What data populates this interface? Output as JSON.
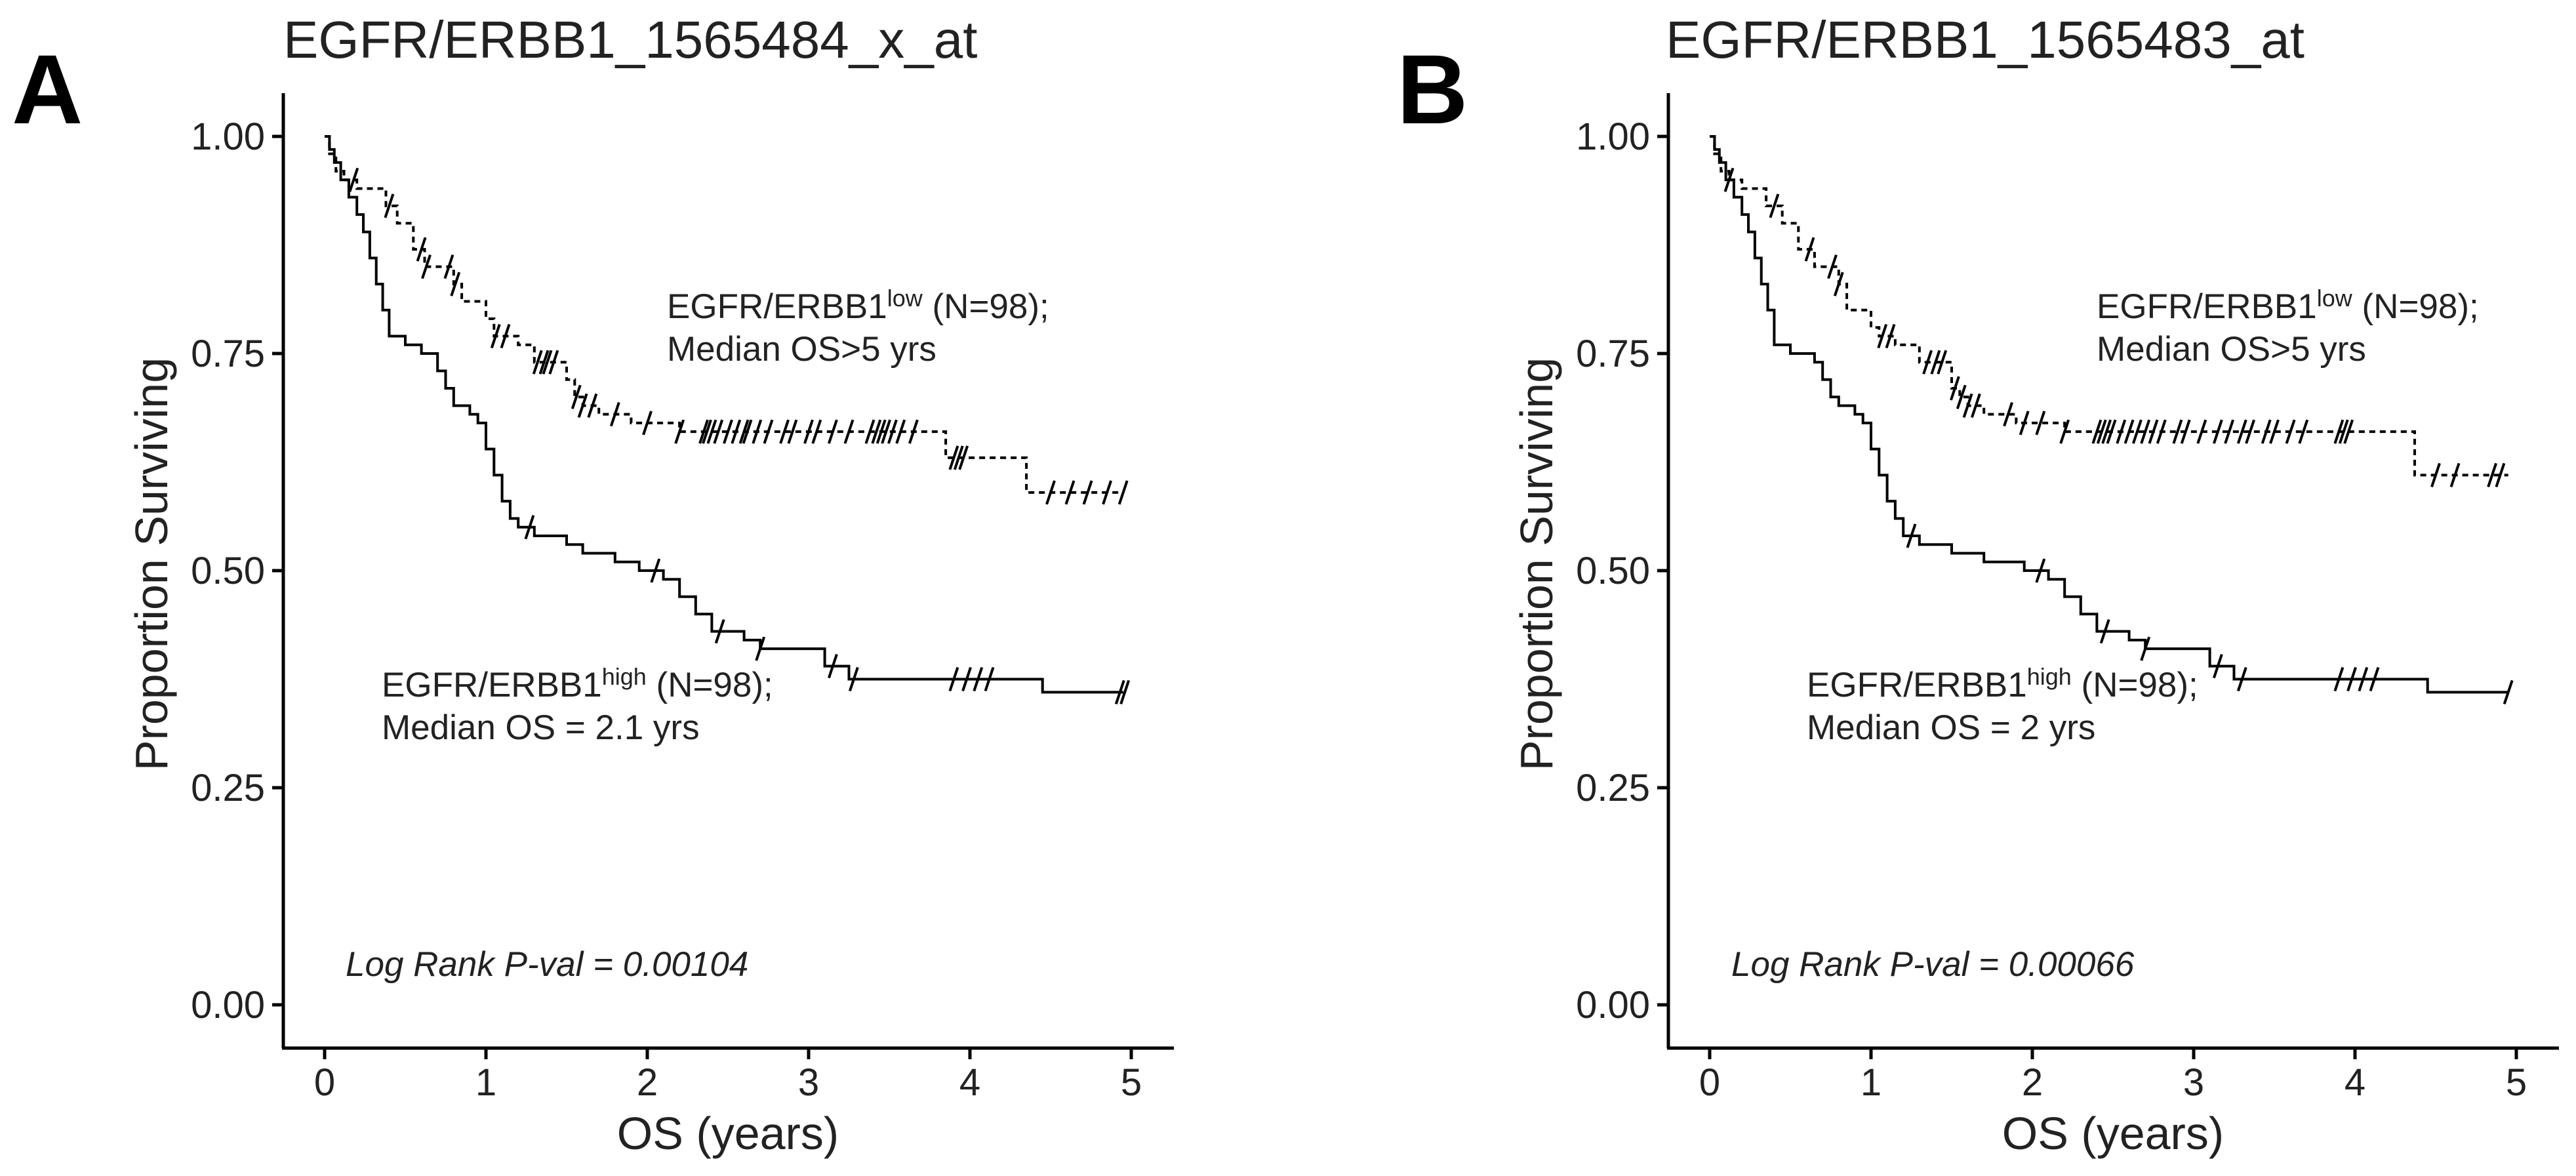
{
  "chart_data": [
    {
      "type": "line",
      "panel_label": "A",
      "title": "EGFR/ERBB1_1565484_x_at",
      "xlabel": "OS (years)",
      "ylabel": "Proportion Surviving",
      "xlim": [
        0,
        5
      ],
      "ylim": [
        0,
        1
      ],
      "x_ticks": [
        "0",
        "1",
        "2",
        "3",
        "4",
        "5"
      ],
      "y_ticks": [
        "0.00",
        "0.25",
        "0.50",
        "0.75",
        "1.00"
      ],
      "annotations": {
        "low_name": "EGFR/ERBB1",
        "low_sup": "low",
        "low_n": " (N=98);",
        "low_median": "Median OS>5 yrs",
        "high_name": "EGFR/ERBB1",
        "high_sup": "high",
        "high_n": " (N=98);",
        "high_median": "Median OS = 2.1 yrs",
        "pvalue": "Log Rank P-val = 0.00104"
      },
      "series": [
        {
          "name": "EGFR/ERBB1 high",
          "style": "solid",
          "steps": [
            [
              0,
              1.0
            ],
            [
              0.03,
              0.985
            ],
            [
              0.06,
              0.97
            ],
            [
              0.1,
              0.95
            ],
            [
              0.15,
              0.93
            ],
            [
              0.2,
              0.91
            ],
            [
              0.24,
              0.89
            ],
            [
              0.28,
              0.86
            ],
            [
              0.32,
              0.83
            ],
            [
              0.36,
              0.8
            ],
            [
              0.4,
              0.77
            ],
            [
              0.5,
              0.76
            ],
            [
              0.6,
              0.75
            ],
            [
              0.7,
              0.73
            ],
            [
              0.75,
              0.71
            ],
            [
              0.8,
              0.69
            ],
            [
              0.9,
              0.68
            ],
            [
              0.95,
              0.67
            ],
            [
              1.0,
              0.64
            ],
            [
              1.05,
              0.61
            ],
            [
              1.1,
              0.58
            ],
            [
              1.15,
              0.56
            ],
            [
              1.2,
              0.55
            ],
            [
              1.3,
              0.54
            ],
            [
              1.5,
              0.53
            ],
            [
              1.6,
              0.52
            ],
            [
              1.8,
              0.51
            ],
            [
              1.95,
              0.5
            ],
            [
              2.1,
              0.49
            ],
            [
              2.2,
              0.47
            ],
            [
              2.3,
              0.45
            ],
            [
              2.4,
              0.43
            ],
            [
              2.6,
              0.42
            ],
            [
              2.7,
              0.41
            ],
            [
              3.1,
              0.39
            ],
            [
              3.25,
              0.375
            ],
            [
              4.45,
              0.36
            ]
          ],
          "end_x": 4.95,
          "censor_times": [
            1.27,
            2.05,
            2.45,
            2.7,
            3.15,
            3.28,
            3.9,
            3.98,
            4.05,
            4.12,
            4.93,
            4.96
          ]
        },
        {
          "name": "EGFR/ERBB1 low",
          "style": "dashed",
          "steps": [
            [
              0,
              1.0
            ],
            [
              0.03,
              0.98
            ],
            [
              0.07,
              0.96
            ],
            [
              0.12,
              0.95
            ],
            [
              0.2,
              0.94
            ],
            [
              0.38,
              0.92
            ],
            [
              0.45,
              0.9
            ],
            [
              0.55,
              0.87
            ],
            [
              0.62,
              0.85
            ],
            [
              0.8,
              0.83
            ],
            [
              0.85,
              0.81
            ],
            [
              1.0,
              0.79
            ],
            [
              1.05,
              0.77
            ],
            [
              1.2,
              0.76
            ],
            [
              1.3,
              0.74
            ],
            [
              1.5,
              0.72
            ],
            [
              1.55,
              0.7
            ],
            [
              1.6,
              0.69
            ],
            [
              1.7,
              0.68
            ],
            [
              1.9,
              0.67
            ],
            [
              2.2,
              0.66
            ],
            [
              3.85,
              0.63
            ],
            [
              4.35,
              0.59
            ]
          ],
          "end_x": 4.95,
          "censor_times": [
            0.18,
            0.4,
            0.6,
            0.63,
            0.77,
            0.81,
            1.06,
            1.12,
            1.32,
            1.36,
            1.38,
            1.42,
            1.56,
            1.6,
            1.66,
            1.8,
            2.0,
            2.2,
            2.35,
            2.37,
            2.4,
            2.44,
            2.5,
            2.55,
            2.6,
            2.62,
            2.68,
            2.75,
            2.85,
            2.9,
            3.0,
            3.05,
            3.15,
            3.25,
            3.38,
            3.42,
            3.45,
            3.48,
            3.52,
            3.57,
            3.65,
            3.9,
            3.93,
            3.96,
            4.5,
            4.62,
            4.73,
            4.85,
            4.95
          ]
        }
      ]
    },
    {
      "type": "line",
      "panel_label": "B",
      "title": "EGFR/ERBB1_1565483_at",
      "xlabel": "OS (years)",
      "ylabel": "Proportion Surviving",
      "xlim": [
        0,
        5
      ],
      "ylim": [
        0,
        1
      ],
      "x_ticks": [
        "0",
        "1",
        "2",
        "3",
        "4",
        "5"
      ],
      "y_ticks": [
        "0.00",
        "0.25",
        "0.50",
        "0.75",
        "1.00"
      ],
      "annotations": {
        "low_name": "EGFR/ERBB1",
        "low_sup": "low",
        "low_n": " (N=98);",
        "low_median": "Median OS>5 yrs",
        "high_name": "EGFR/ERBB1",
        "high_sup": "high",
        "high_n": " (N=98);",
        "high_median": "Median OS = 2 yrs",
        "pvalue": "Log Rank P-val = 0.00066"
      },
      "series": [
        {
          "name": "EGFR/ERBB1 high",
          "style": "solid",
          "steps": [
            [
              0,
              1.0
            ],
            [
              0.03,
              0.985
            ],
            [
              0.06,
              0.97
            ],
            [
              0.1,
              0.95
            ],
            [
              0.15,
              0.93
            ],
            [
              0.2,
              0.91
            ],
            [
              0.24,
              0.89
            ],
            [
              0.28,
              0.86
            ],
            [
              0.32,
              0.83
            ],
            [
              0.36,
              0.8
            ],
            [
              0.4,
              0.76
            ],
            [
              0.5,
              0.75
            ],
            [
              0.65,
              0.74
            ],
            [
              0.7,
              0.72
            ],
            [
              0.75,
              0.7
            ],
            [
              0.8,
              0.69
            ],
            [
              0.9,
              0.68
            ],
            [
              0.95,
              0.67
            ],
            [
              1.0,
              0.64
            ],
            [
              1.05,
              0.61
            ],
            [
              1.1,
              0.58
            ],
            [
              1.15,
              0.56
            ],
            [
              1.2,
              0.54
            ],
            [
              1.3,
              0.53
            ],
            [
              1.5,
              0.52
            ],
            [
              1.7,
              0.51
            ],
            [
              1.95,
              0.5
            ],
            [
              2.1,
              0.49
            ],
            [
              2.2,
              0.47
            ],
            [
              2.3,
              0.45
            ],
            [
              2.4,
              0.43
            ],
            [
              2.6,
              0.42
            ],
            [
              2.7,
              0.41
            ],
            [
              3.1,
              0.39
            ],
            [
              3.25,
              0.375
            ],
            [
              4.45,
              0.36
            ]
          ],
          "end_x": 4.95,
          "censor_times": [
            1.25,
            2.05,
            2.45,
            2.7,
            3.15,
            3.3,
            3.9,
            3.98,
            4.05,
            4.12,
            4.95
          ]
        },
        {
          "name": "EGFR/ERBB1 low",
          "style": "dashed",
          "steps": [
            [
              0,
              1.0
            ],
            [
              0.03,
              0.98
            ],
            [
              0.07,
              0.96
            ],
            [
              0.12,
              0.95
            ],
            [
              0.2,
              0.94
            ],
            [
              0.35,
              0.92
            ],
            [
              0.45,
              0.9
            ],
            [
              0.55,
              0.87
            ],
            [
              0.65,
              0.85
            ],
            [
              0.8,
              0.83
            ],
            [
              0.85,
              0.8
            ],
            [
              1.0,
              0.78
            ],
            [
              1.05,
              0.77
            ],
            [
              1.15,
              0.76
            ],
            [
              1.3,
              0.74
            ],
            [
              1.5,
              0.71
            ],
            [
              1.55,
              0.7
            ],
            [
              1.6,
              0.69
            ],
            [
              1.7,
              0.68
            ],
            [
              1.9,
              0.67
            ],
            [
              2.2,
              0.66
            ],
            [
              4.37,
              0.61
            ]
          ],
          "end_x": 4.95,
          "censor_times": [
            0.12,
            0.4,
            0.62,
            0.76,
            0.8,
            1.07,
            1.12,
            1.35,
            1.4,
            1.44,
            1.52,
            1.56,
            1.6,
            1.65,
            1.85,
            1.95,
            2.05,
            2.2,
            2.4,
            2.43,
            2.46,
            2.49,
            2.55,
            2.6,
            2.65,
            2.7,
            2.75,
            2.8,
            2.9,
            2.95,
            3.05,
            3.15,
            3.22,
            3.3,
            3.35,
            3.45,
            3.5,
            3.6,
            3.68,
            3.9,
            3.93,
            3.96,
            4.5,
            4.62,
            4.85,
            4.9
          ]
        }
      ]
    }
  ]
}
